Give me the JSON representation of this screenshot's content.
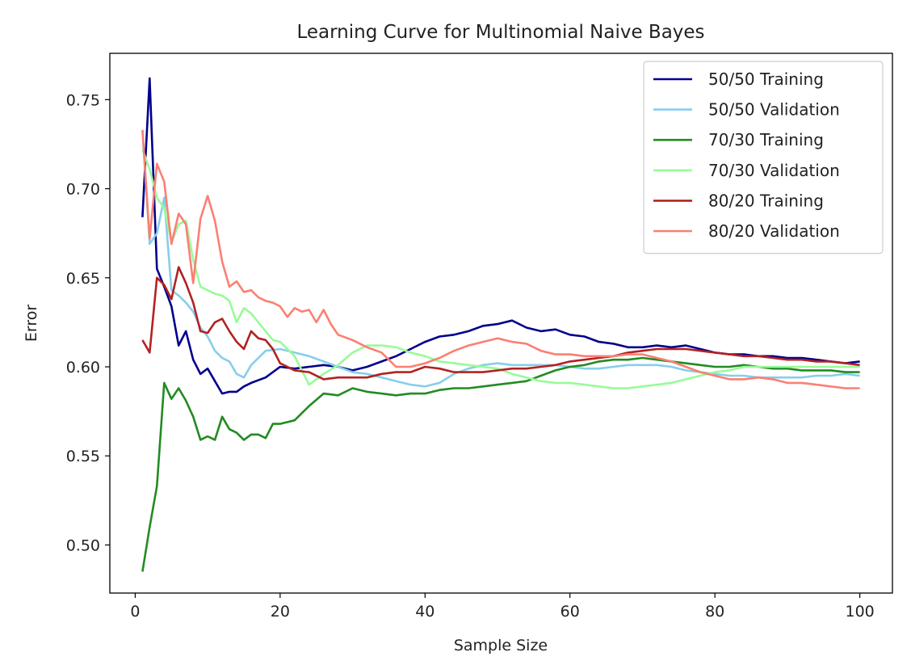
{
  "chart_data": {
    "type": "line",
    "title": "Learning Curve for Multinomial Naive Bayes",
    "xlabel": "Sample Size",
    "ylabel": "Error",
    "xlim": [
      -3.5,
      104.5
    ],
    "ylim": [
      0.473,
      0.776
    ],
    "xticks": [
      0,
      20,
      40,
      60,
      80,
      100
    ],
    "xtick_labels": [
      "0",
      "20",
      "40",
      "60",
      "80",
      "100"
    ],
    "yticks": [
      0.5,
      0.55,
      0.6,
      0.65,
      0.7,
      0.75
    ],
    "ytick_labels": [
      "0.50",
      "0.55",
      "0.60",
      "0.65",
      "0.70",
      "0.75"
    ],
    "grid": false,
    "legend_position": "top-right",
    "series": [
      {
        "name": "50/50 Training",
        "color": "#00008b",
        "x": [
          1,
          2,
          3,
          4,
          5,
          6,
          7,
          8,
          9,
          10,
          11,
          12,
          13,
          14,
          15,
          16,
          18,
          20,
          22,
          24,
          26,
          28,
          30,
          32,
          34,
          36,
          38,
          40,
          42,
          44,
          46,
          48,
          50,
          52,
          54,
          56,
          58,
          60,
          62,
          64,
          66,
          68,
          70,
          72,
          74,
          76,
          78,
          80,
          82,
          84,
          86,
          88,
          90,
          92,
          94,
          96,
          98,
          100
        ],
        "values": [
          0.684,
          0.762,
          0.655,
          0.645,
          0.634,
          0.612,
          0.62,
          0.604,
          0.596,
          0.599,
          0.592,
          0.585,
          0.586,
          0.586,
          0.589,
          0.591,
          0.594,
          0.6,
          0.599,
          0.6,
          0.601,
          0.6,
          0.598,
          0.6,
          0.603,
          0.606,
          0.61,
          0.614,
          0.617,
          0.618,
          0.62,
          0.623,
          0.624,
          0.626,
          0.622,
          0.62,
          0.621,
          0.618,
          0.617,
          0.614,
          0.613,
          0.611,
          0.611,
          0.612,
          0.611,
          0.612,
          0.61,
          0.608,
          0.607,
          0.607,
          0.606,
          0.606,
          0.605,
          0.605,
          0.604,
          0.603,
          0.602,
          0.603
        ]
      },
      {
        "name": "50/50 Validation",
        "color": "#87ceeb",
        "x": [
          1,
          2,
          3,
          4,
          5,
          6,
          7,
          8,
          9,
          10,
          11,
          12,
          13,
          14,
          15,
          16,
          18,
          20,
          22,
          24,
          26,
          28,
          30,
          32,
          34,
          36,
          38,
          40,
          42,
          44,
          46,
          48,
          50,
          52,
          54,
          56,
          58,
          60,
          62,
          64,
          66,
          68,
          70,
          72,
          74,
          76,
          78,
          80,
          82,
          84,
          86,
          88,
          90,
          92,
          94,
          96,
          98,
          100
        ],
        "values": [
          0.733,
          0.669,
          0.675,
          0.695,
          0.643,
          0.64,
          0.636,
          0.631,
          0.622,
          0.617,
          0.609,
          0.605,
          0.603,
          0.596,
          0.594,
          0.601,
          0.609,
          0.61,
          0.608,
          0.606,
          0.603,
          0.6,
          0.597,
          0.596,
          0.594,
          0.592,
          0.59,
          0.589,
          0.591,
          0.596,
          0.599,
          0.601,
          0.602,
          0.601,
          0.601,
          0.601,
          0.601,
          0.6,
          0.599,
          0.599,
          0.6,
          0.601,
          0.601,
          0.601,
          0.6,
          0.598,
          0.597,
          0.596,
          0.595,
          0.595,
          0.594,
          0.594,
          0.594,
          0.594,
          0.595,
          0.595,
          0.596,
          0.595
        ]
      },
      {
        "name": "70/30 Training",
        "color": "#228b22",
        "x": [
          1,
          2,
          3,
          4,
          5,
          6,
          7,
          8,
          9,
          10,
          11,
          12,
          13,
          14,
          15,
          16,
          17,
          18,
          19,
          20,
          22,
          24,
          26,
          28,
          30,
          32,
          34,
          36,
          38,
          40,
          42,
          44,
          46,
          48,
          50,
          52,
          54,
          56,
          58,
          60,
          62,
          64,
          66,
          68,
          70,
          72,
          74,
          76,
          78,
          80,
          82,
          84,
          86,
          88,
          90,
          92,
          94,
          96,
          98,
          100
        ],
        "values": [
          0.485,
          0.51,
          0.533,
          0.591,
          0.582,
          0.588,
          0.581,
          0.572,
          0.559,
          0.561,
          0.559,
          0.572,
          0.565,
          0.563,
          0.559,
          0.562,
          0.562,
          0.56,
          0.568,
          0.568,
          0.57,
          0.578,
          0.585,
          0.584,
          0.588,
          0.586,
          0.585,
          0.584,
          0.585,
          0.585,
          0.587,
          0.588,
          0.588,
          0.589,
          0.59,
          0.591,
          0.592,
          0.595,
          0.598,
          0.6,
          0.601,
          0.603,
          0.604,
          0.604,
          0.605,
          0.604,
          0.603,
          0.602,
          0.601,
          0.6,
          0.6,
          0.601,
          0.6,
          0.599,
          0.599,
          0.598,
          0.598,
          0.598,
          0.597,
          0.597
        ]
      },
      {
        "name": "70/30 Validation",
        "color": "#98fb98",
        "x": [
          1,
          2,
          3,
          4,
          5,
          6,
          7,
          8,
          9,
          10,
          11,
          12,
          13,
          14,
          15,
          16,
          17,
          18,
          19,
          20,
          22,
          24,
          26,
          28,
          30,
          32,
          34,
          36,
          38,
          40,
          42,
          44,
          46,
          48,
          50,
          52,
          54,
          56,
          58,
          60,
          62,
          64,
          66,
          68,
          70,
          72,
          74,
          76,
          78,
          80,
          82,
          84,
          86,
          88,
          90,
          92,
          94,
          96,
          98,
          100
        ],
        "values": [
          0.722,
          0.711,
          0.695,
          0.689,
          0.67,
          0.68,
          0.682,
          0.66,
          0.645,
          0.643,
          0.641,
          0.64,
          0.637,
          0.625,
          0.633,
          0.63,
          0.625,
          0.62,
          0.615,
          0.614,
          0.606,
          0.59,
          0.596,
          0.601,
          0.608,
          0.612,
          0.612,
          0.611,
          0.608,
          0.606,
          0.603,
          0.602,
          0.601,
          0.6,
          0.599,
          0.596,
          0.594,
          0.592,
          0.591,
          0.591,
          0.59,
          0.589,
          0.588,
          0.588,
          0.589,
          0.59,
          0.591,
          0.593,
          0.595,
          0.597,
          0.598,
          0.6,
          0.6,
          0.6,
          0.6,
          0.6,
          0.6,
          0.6,
          0.6,
          0.6
        ]
      },
      {
        "name": "80/20 Training",
        "color": "#b22222",
        "x": [
          1,
          2,
          3,
          4,
          5,
          6,
          7,
          8,
          9,
          10,
          11,
          12,
          13,
          14,
          15,
          16,
          17,
          18,
          19,
          20,
          22,
          24,
          26,
          28,
          30,
          32,
          34,
          36,
          38,
          40,
          42,
          44,
          46,
          48,
          50,
          52,
          54,
          56,
          58,
          60,
          62,
          64,
          66,
          68,
          70,
          72,
          74,
          76,
          78,
          80,
          82,
          84,
          86,
          88,
          90,
          92,
          94,
          96,
          98,
          100
        ],
        "values": [
          0.615,
          0.608,
          0.65,
          0.646,
          0.638,
          0.656,
          0.647,
          0.636,
          0.62,
          0.619,
          0.625,
          0.627,
          0.62,
          0.614,
          0.61,
          0.62,
          0.616,
          0.615,
          0.61,
          0.602,
          0.598,
          0.597,
          0.593,
          0.594,
          0.594,
          0.594,
          0.596,
          0.597,
          0.597,
          0.6,
          0.599,
          0.597,
          0.597,
          0.597,
          0.598,
          0.599,
          0.599,
          0.6,
          0.601,
          0.603,
          0.604,
          0.605,
          0.606,
          0.608,
          0.609,
          0.61,
          0.61,
          0.61,
          0.609,
          0.608,
          0.607,
          0.606,
          0.606,
          0.605,
          0.604,
          0.604,
          0.603,
          0.603,
          0.602,
          0.601
        ]
      },
      {
        "name": "80/20 Validation",
        "color": "#fa8072",
        "x": [
          1,
          2,
          3,
          4,
          5,
          6,
          7,
          8,
          9,
          10,
          11,
          12,
          13,
          14,
          15,
          16,
          17,
          18,
          19,
          20,
          21,
          22,
          23,
          24,
          25,
          26,
          27,
          28,
          30,
          32,
          34,
          36,
          38,
          40,
          42,
          44,
          46,
          48,
          50,
          52,
          54,
          56,
          58,
          60,
          62,
          64,
          66,
          68,
          70,
          72,
          74,
          76,
          78,
          80,
          82,
          84,
          86,
          88,
          90,
          92,
          94,
          96,
          98,
          100
        ],
        "values": [
          0.733,
          0.672,
          0.714,
          0.704,
          0.669,
          0.686,
          0.68,
          0.647,
          0.683,
          0.696,
          0.682,
          0.659,
          0.645,
          0.648,
          0.642,
          0.643,
          0.639,
          0.637,
          0.636,
          0.634,
          0.628,
          0.633,
          0.631,
          0.632,
          0.625,
          0.632,
          0.624,
          0.618,
          0.615,
          0.611,
          0.608,
          0.6,
          0.6,
          0.602,
          0.605,
          0.609,
          0.612,
          0.614,
          0.616,
          0.614,
          0.613,
          0.609,
          0.607,
          0.607,
          0.606,
          0.606,
          0.606,
          0.607,
          0.607,
          0.605,
          0.603,
          0.6,
          0.597,
          0.595,
          0.593,
          0.593,
          0.594,
          0.593,
          0.591,
          0.591,
          0.59,
          0.589,
          0.588,
          0.588
        ]
      }
    ]
  }
}
